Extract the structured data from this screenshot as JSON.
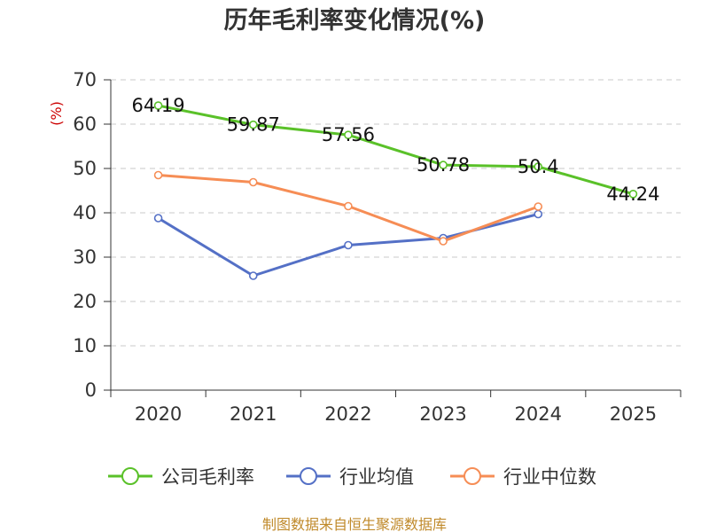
{
  "chart_data": {
    "type": "line",
    "title": "历年毛利率变化情况(%)",
    "ylabel": "(%)",
    "xlabel": "",
    "categories": [
      "2020",
      "2021",
      "2022",
      "2023",
      "2024",
      "2025"
    ],
    "ylim": [
      0,
      70
    ],
    "yticks": [
      0,
      10,
      20,
      30,
      40,
      50,
      60,
      70
    ],
    "grid": true,
    "legend": "bottom",
    "series": [
      {
        "name": "公司毛利率",
        "color": "#5ac129",
        "values": [
          64.19,
          59.87,
          57.56,
          50.78,
          50.4,
          44.24
        ],
        "labels": [
          "64.19",
          "59.87",
          "57.56",
          "50.78",
          "50.4",
          "44.24"
        ]
      },
      {
        "name": "行业均值",
        "color": "#5470c6",
        "values": [
          38.8,
          25.8,
          32.7,
          34.3,
          39.7,
          null
        ]
      },
      {
        "name": "行业中位数",
        "color": "#f68d55",
        "values": [
          48.5,
          46.9,
          41.5,
          33.6,
          41.4,
          null
        ]
      }
    ]
  },
  "footer": {
    "source": "制图数据来自恒生聚源数据库"
  }
}
